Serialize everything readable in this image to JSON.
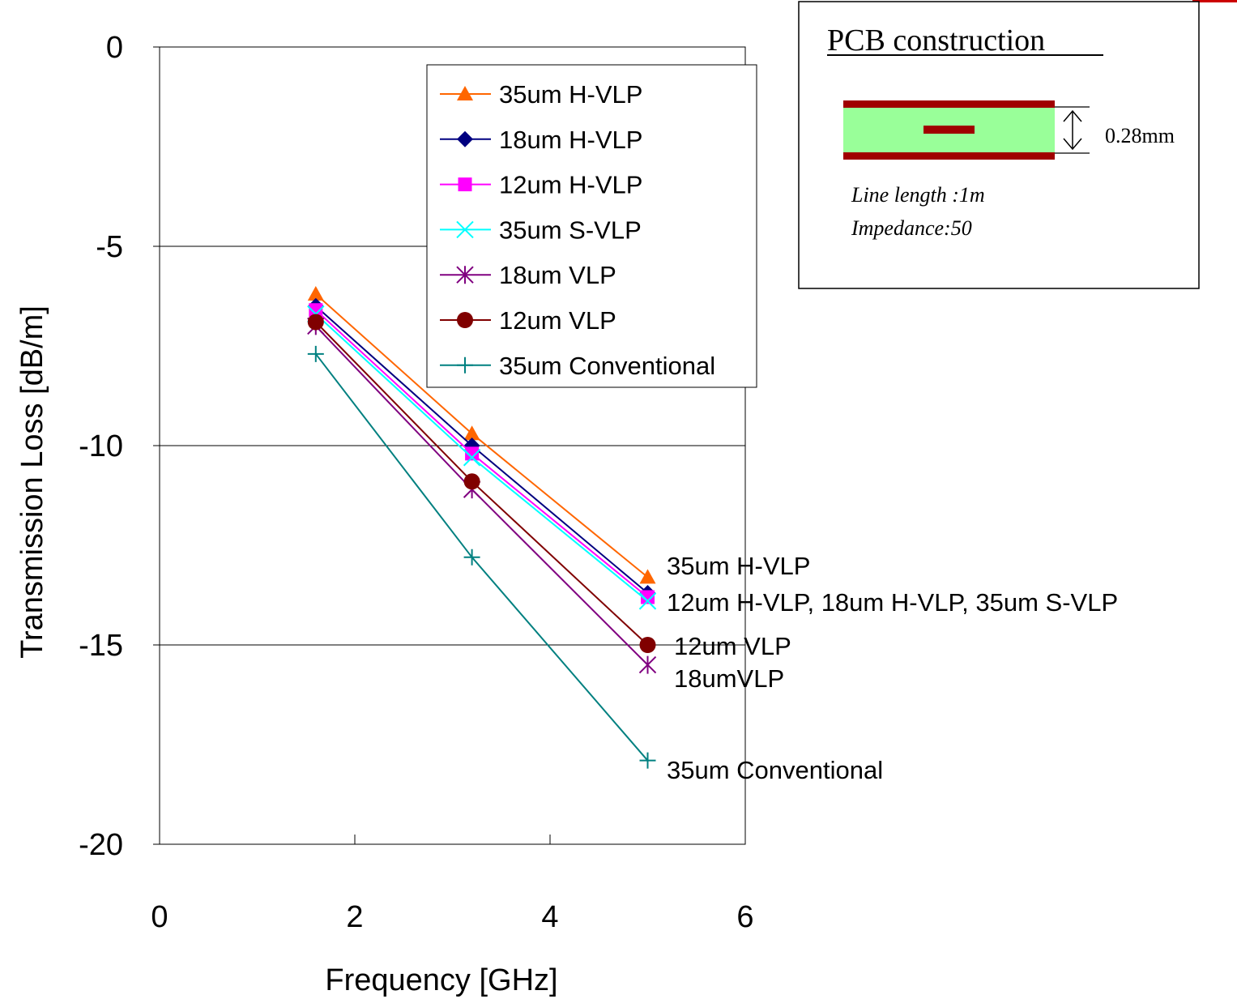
{
  "chart_data": {
    "type": "line",
    "xlabel": "Frequency [GHz]",
    "ylabel": "Transmission Loss [dB/m]",
    "xlim": [
      0,
      6
    ],
    "ylim": [
      -20,
      0
    ],
    "x_ticks": [
      "0",
      "2",
      "4",
      "6"
    ],
    "y_ticks": [
      "0",
      "-5",
      "-10",
      "-15",
      "-20"
    ],
    "grid": "horizontal",
    "legend_position": "top-right",
    "series": [
      {
        "name": "35um H-VLP",
        "color": "#ff6600",
        "marker": "triangle",
        "x": [
          1.6,
          3.2,
          5.0
        ],
        "y": [
          -6.2,
          -9.7,
          -13.3
        ]
      },
      {
        "name": "18um H-VLP",
        "color": "#000080",
        "marker": "diamond",
        "x": [
          1.6,
          3.2,
          5.0
        ],
        "y": [
          -6.5,
          -10.0,
          -13.7
        ]
      },
      {
        "name": "12um H-VLP",
        "color": "#ff00ff",
        "marker": "square",
        "x": [
          1.6,
          3.2,
          5.0
        ],
        "y": [
          -6.6,
          -10.2,
          -13.8
        ]
      },
      {
        "name": "35um S-VLP",
        "color": "#00ffff",
        "marker": "x",
        "x": [
          1.6,
          3.2,
          5.0
        ],
        "y": [
          -6.7,
          -10.3,
          -13.9
        ]
      },
      {
        "name": "18um VLP",
        "color": "#800080",
        "marker": "star",
        "x": [
          1.6,
          3.2,
          5.0
        ],
        "y": [
          -7.0,
          -11.1,
          -15.5
        ]
      },
      {
        "name": "12um VLP",
        "color": "#800000",
        "marker": "circle",
        "x": [
          1.6,
          3.2,
          5.0
        ],
        "y": [
          -6.9,
          -10.9,
          -15.0
        ]
      },
      {
        "name": "35um Conventional",
        "color": "#008080",
        "marker": "plus",
        "x": [
          1.6,
          3.2,
          5.0
        ],
        "y": [
          -7.7,
          -12.8,
          -17.9
        ]
      }
    ],
    "annotations": [
      {
        "text": "35um H-VLP",
        "x": 5.0,
        "y": -13.0
      },
      {
        "text": "12um H-VLP, 18um H-VLP, 35um S-VLP",
        "x": 5.0,
        "y": -13.9
      },
      {
        "text": "12um VLP",
        "x": 5.0,
        "y": -15.0
      },
      {
        "text": "18umVLP",
        "x": 5.0,
        "y": -15.8
      },
      {
        "text": "35um Conventional",
        "x": 5.0,
        "y": -18.1
      }
    ]
  },
  "inset": {
    "title": "PCB construction",
    "dimension": "0.28mm",
    "notes": [
      "Line length :1m",
      "Impedance:50"
    ],
    "colors": {
      "copper": "#a00000",
      "dielectric": "#99ff99"
    }
  }
}
